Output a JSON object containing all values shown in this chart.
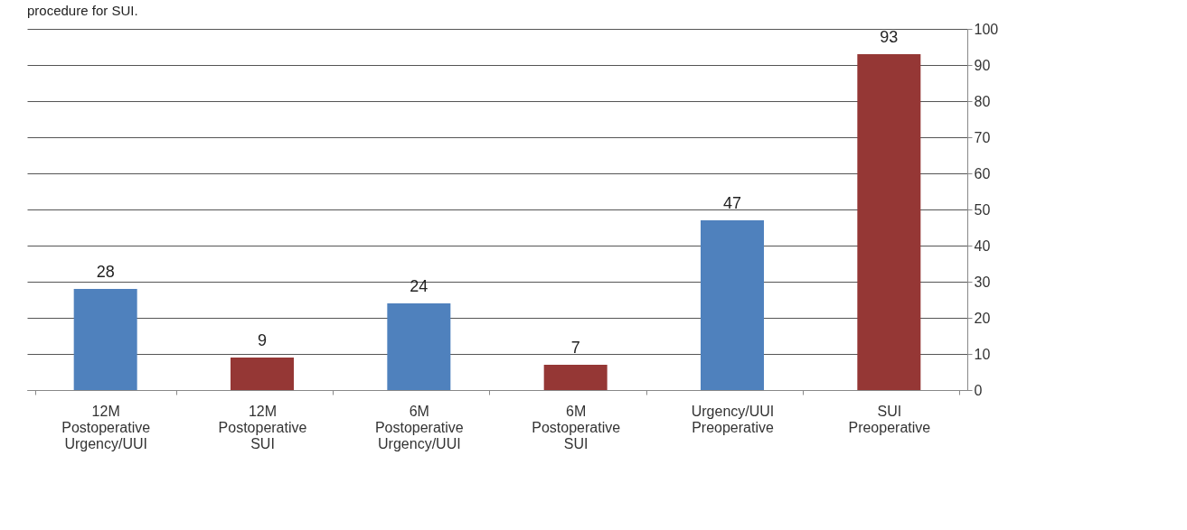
{
  "chart_data": {
    "type": "bar",
    "title": "procedure for SUI.",
    "categories": [
      "12M Postoperative Urgency/UUI",
      "12M Postoperative SUI",
      "6M Postoperative Urgency/UUI",
      "6M Postoperative SUI",
      "Urgency/UUI Preoperative",
      "SUI Preoperative"
    ],
    "values": [
      28,
      9,
      24,
      7,
      47,
      93
    ],
    "colors": [
      "#4f81bd",
      "#953735",
      "#4f81bd",
      "#953735",
      "#4f81bd",
      "#953735"
    ],
    "ylim": [
      0,
      100
    ],
    "yticks": [
      0,
      10,
      20,
      30,
      40,
      50,
      60,
      70,
      80,
      90,
      100
    ],
    "grid": "y",
    "data_labels": true
  }
}
